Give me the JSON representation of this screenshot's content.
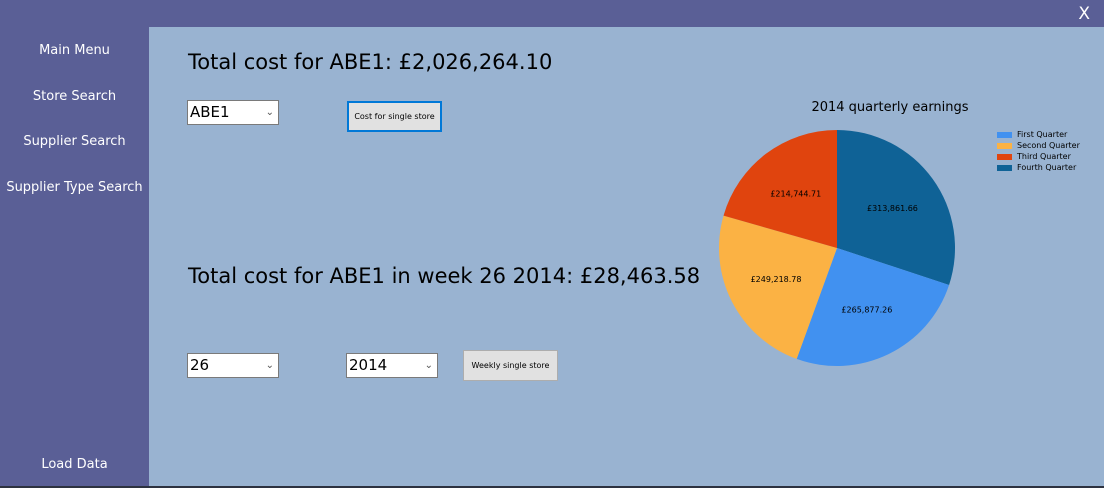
{
  "window": {
    "close_label": "X"
  },
  "sidebar": {
    "items": [
      {
        "label": "Main Menu"
      },
      {
        "label": "Store Search"
      },
      {
        "label": "Supplier Search"
      },
      {
        "label": "Supplier Type Search"
      },
      {
        "label": "Load Data"
      }
    ]
  },
  "main": {
    "total_heading": "Total cost for ABE1: £2,026,264.10",
    "store_select": {
      "value": "ABE1"
    },
    "single_store_button": "Cost for single store",
    "weekly_heading": "Total cost for ABE1 in week 26 2014: £28,463.58",
    "week_select": {
      "value": "26"
    },
    "year_select": {
      "value": "2014"
    },
    "weekly_button": "Weekly single store"
  },
  "colors": {
    "sidebar_bg": "#5a5f96",
    "main_bg": "#99b3d1",
    "first_quarter": "#4191f0",
    "second_quarter": "#fbb244",
    "third_quarter": "#e0440e",
    "fourth_quarter": "#0f6296"
  },
  "chart_data": {
    "type": "pie",
    "title": "2014 quarterly earnings",
    "legend_position": "top-right",
    "categories": [
      "First Quarter",
      "Second Quarter",
      "Third Quarter",
      "Fourth Quarter"
    ],
    "values": [
      265877.26,
      249218.78,
      214744.71,
      313861.66
    ],
    "value_labels": [
      "£265,877.26",
      "£249,218.78",
      "£214,744.71",
      "£313,861.66"
    ],
    "colors": [
      "#4191f0",
      "#fbb244",
      "#e0440e",
      "#0f6296"
    ]
  }
}
